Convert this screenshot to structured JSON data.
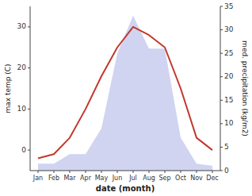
{
  "chart_data": {
    "type": "line",
    "xlabel": "date (month)",
    "ylabel": "max temp (C)",
    "y2label": "med. precipitation (kg/m2)",
    "categories": [
      "Jan",
      "Feb",
      "Mar",
      "Apr",
      "May",
      "Jun",
      "Jul",
      "Aug",
      "Sep",
      "Oct",
      "Nov",
      "Dec"
    ],
    "series": [
      {
        "type": "area",
        "axis": "y2",
        "color": "#b0b8e8",
        "values": [
          1.5,
          1.5,
          3.5,
          3.5,
          9,
          25,
          33,
          26,
          26,
          7,
          1.5,
          1
        ]
      },
      {
        "type": "line",
        "color": "#c0392b",
        "values": [
          -2,
          -1,
          3,
          10,
          18,
          25,
          30,
          28,
          25,
          15,
          3,
          0
        ]
      }
    ],
    "ylim": [
      -5,
      35
    ],
    "yticks": [
      0,
      10,
      20,
      30
    ],
    "y2lim": [
      0,
      35
    ],
    "y2ticks": [
      0,
      5,
      10,
      15,
      20,
      25,
      30,
      35
    ]
  }
}
